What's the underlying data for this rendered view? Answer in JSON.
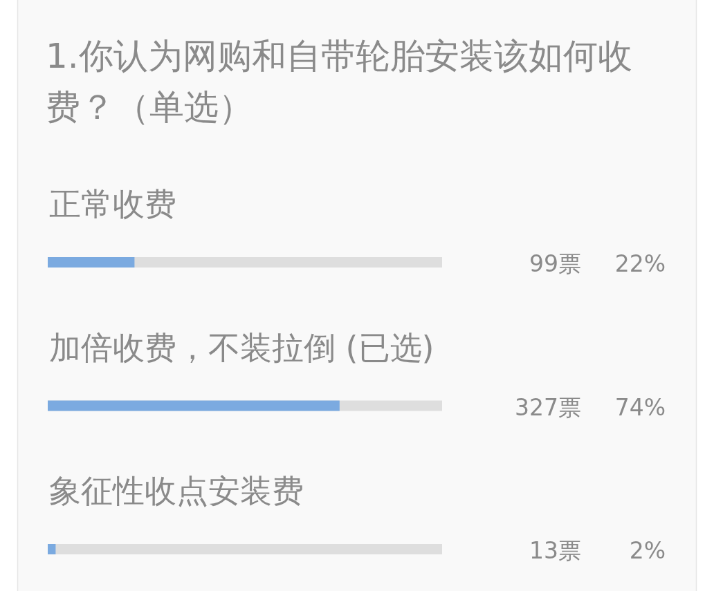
{
  "chart_data": {
    "type": "bar",
    "orientation": "horizontal",
    "title": "1.你认为网购和自带轮胎安装该如何收费？（单选）",
    "categories": [
      "正常收费",
      "加倍收费，不装拉倒 (已选)",
      "象征性收点安装费"
    ],
    "values": [
      22,
      74,
      2
    ],
    "color": "#7baae0",
    "xlim": [
      0,
      100
    ],
    "tick_labels": "y",
    "value_labels": [
      "22%",
      "74%",
      "2%"
    ],
    "annotations": [
      "99票",
      "327票",
      "13票"
    ]
  }
}
